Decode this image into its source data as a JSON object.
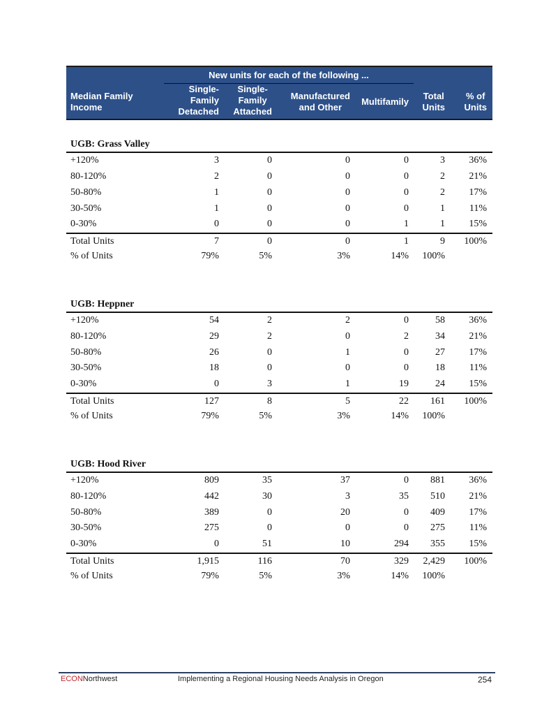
{
  "header": {
    "span_title": "New units for each of the following ...",
    "col_income": [
      "Median Family",
      "Income"
    ],
    "col_sfd": [
      "Single-",
      "Family",
      "Detached"
    ],
    "col_sfa": [
      "Single-",
      "Family",
      "Attached"
    ],
    "col_manuf": [
      "Manufactured",
      "and Other"
    ],
    "col_multi": [
      "Multifamily"
    ],
    "col_total": [
      "Total",
      "Units"
    ],
    "col_pct": [
      "% of",
      "Units"
    ]
  },
  "sections": [
    {
      "title": "UGB: Grass Valley",
      "rows": [
        [
          "+120%",
          "3",
          "0",
          "0",
          "0",
          "3",
          "36%"
        ],
        [
          "80-120%",
          "2",
          "0",
          "0",
          "0",
          "2",
          "21%"
        ],
        [
          "50-80%",
          "1",
          "0",
          "0",
          "0",
          "2",
          "17%"
        ],
        [
          "30-50%",
          "1",
          "0",
          "0",
          "0",
          "1",
          "11%"
        ],
        [
          "0-30%",
          "0",
          "0",
          "0",
          "1",
          "1",
          "15%"
        ]
      ],
      "total": [
        "Total Units",
        "7",
        "0",
        "0",
        "1",
        "9",
        "100%"
      ],
      "pct": [
        "% of Units",
        "79%",
        "5%",
        "3%",
        "14%",
        "100%",
        ""
      ]
    },
    {
      "title": "UGB: Heppner",
      "rows": [
        [
          "+120%",
          "54",
          "2",
          "2",
          "0",
          "58",
          "36%"
        ],
        [
          "80-120%",
          "29",
          "2",
          "0",
          "2",
          "34",
          "21%"
        ],
        [
          "50-80%",
          "26",
          "0",
          "1",
          "0",
          "27",
          "17%"
        ],
        [
          "30-50%",
          "18",
          "0",
          "0",
          "0",
          "18",
          "11%"
        ],
        [
          "0-30%",
          "0",
          "3",
          "1",
          "19",
          "24",
          "15%"
        ]
      ],
      "total": [
        "Total Units",
        "127",
        "8",
        "5",
        "22",
        "161",
        "100%"
      ],
      "pct": [
        "% of Units",
        "79%",
        "5%",
        "3%",
        "14%",
        "100%",
        ""
      ]
    },
    {
      "title": "UGB: Hood River",
      "rows": [
        [
          "+120%",
          "809",
          "35",
          "37",
          "0",
          "881",
          "36%"
        ],
        [
          "80-120%",
          "442",
          "30",
          "3",
          "35",
          "510",
          "21%"
        ],
        [
          "50-80%",
          "389",
          "0",
          "20",
          "0",
          "409",
          "17%"
        ],
        [
          "30-50%",
          "275",
          "0",
          "0",
          "0",
          "275",
          "11%"
        ],
        [
          "0-30%",
          "0",
          "51",
          "10",
          "294",
          "355",
          "15%"
        ]
      ],
      "total": [
        "Total Units",
        "1,915",
        "116",
        "70",
        "329",
        "2,429",
        "100%"
      ],
      "pct": [
        "% of Units",
        "79%",
        "5%",
        "3%",
        "14%",
        "100%",
        ""
      ]
    }
  ],
  "footer": {
    "brand_red": "ECON",
    "brand_rest": "orthwest",
    "brand_n": "N",
    "title": "Implementing a Regional Housing Needs Analysis in Oregon",
    "page": "254",
    "brand_color": "#c0282d"
  },
  "colors": {
    "header_bg": "#2d5089"
  }
}
